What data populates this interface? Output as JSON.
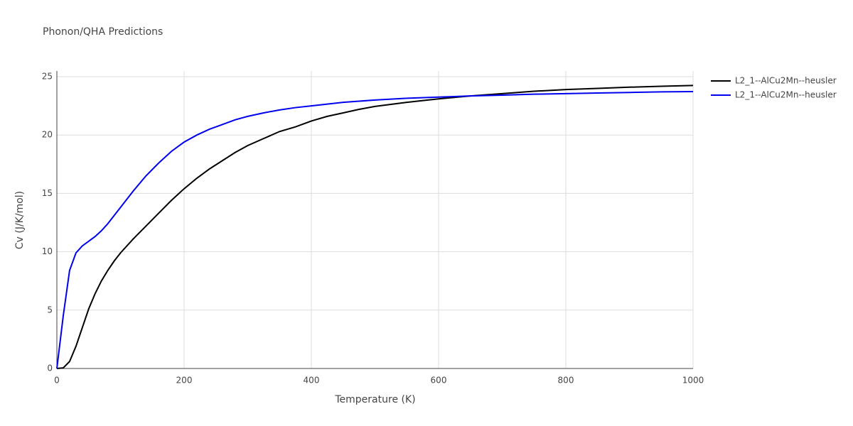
{
  "chart_data": {
    "type": "line",
    "title": "Phonon/QHA Predictions",
    "x_label": "Temperature (K)",
    "y_label": "Cv (J/K/mol)",
    "x": [
      0,
      10,
      20,
      30,
      40,
      50,
      60,
      70,
      80,
      90,
      100,
      120,
      140,
      160,
      180,
      200,
      220,
      240,
      260,
      280,
      300,
      325,
      350,
      375,
      400,
      425,
      450,
      475,
      500,
      550,
      600,
      650,
      700,
      750,
      800,
      850,
      900,
      950,
      1000
    ],
    "series": [
      {
        "name": "L2_1--AlCu2Mn--heusler",
        "color": "#000000",
        "values": [
          0,
          0.05,
          0.6,
          1.9,
          3.5,
          5.1,
          6.4,
          7.5,
          8.4,
          9.2,
          9.9,
          11.1,
          12.2,
          13.3,
          14.4,
          15.4,
          16.3,
          17.1,
          17.8,
          18.5,
          19.1,
          19.7,
          20.3,
          20.7,
          21.2,
          21.6,
          21.9,
          22.2,
          22.45,
          22.8,
          23.1,
          23.35,
          23.55,
          23.75,
          23.9,
          24.0,
          24.1,
          24.18,
          24.25
        ]
      },
      {
        "name": "L2_1--AlCu2Mn--heusler",
        "color": "#0000ee",
        "values": [
          0,
          4.5,
          8.4,
          9.9,
          10.5,
          10.9,
          11.3,
          11.8,
          12.4,
          13.1,
          13.8,
          15.2,
          16.5,
          17.6,
          18.6,
          19.4,
          20.0,
          20.5,
          20.9,
          21.3,
          21.6,
          21.9,
          22.15,
          22.35,
          22.5,
          22.65,
          22.8,
          22.9,
          23.0,
          23.15,
          23.25,
          23.35,
          23.42,
          23.5,
          23.55,
          23.6,
          23.65,
          23.7,
          23.72
        ]
      }
    ],
    "xlim": [
      0,
      1000
    ],
    "xticks": [
      0,
      200,
      400,
      600,
      800,
      1000
    ],
    "ylim": [
      0,
      25
    ],
    "yticks": [
      0,
      5,
      10,
      15,
      20,
      25
    ],
    "grid": true
  }
}
